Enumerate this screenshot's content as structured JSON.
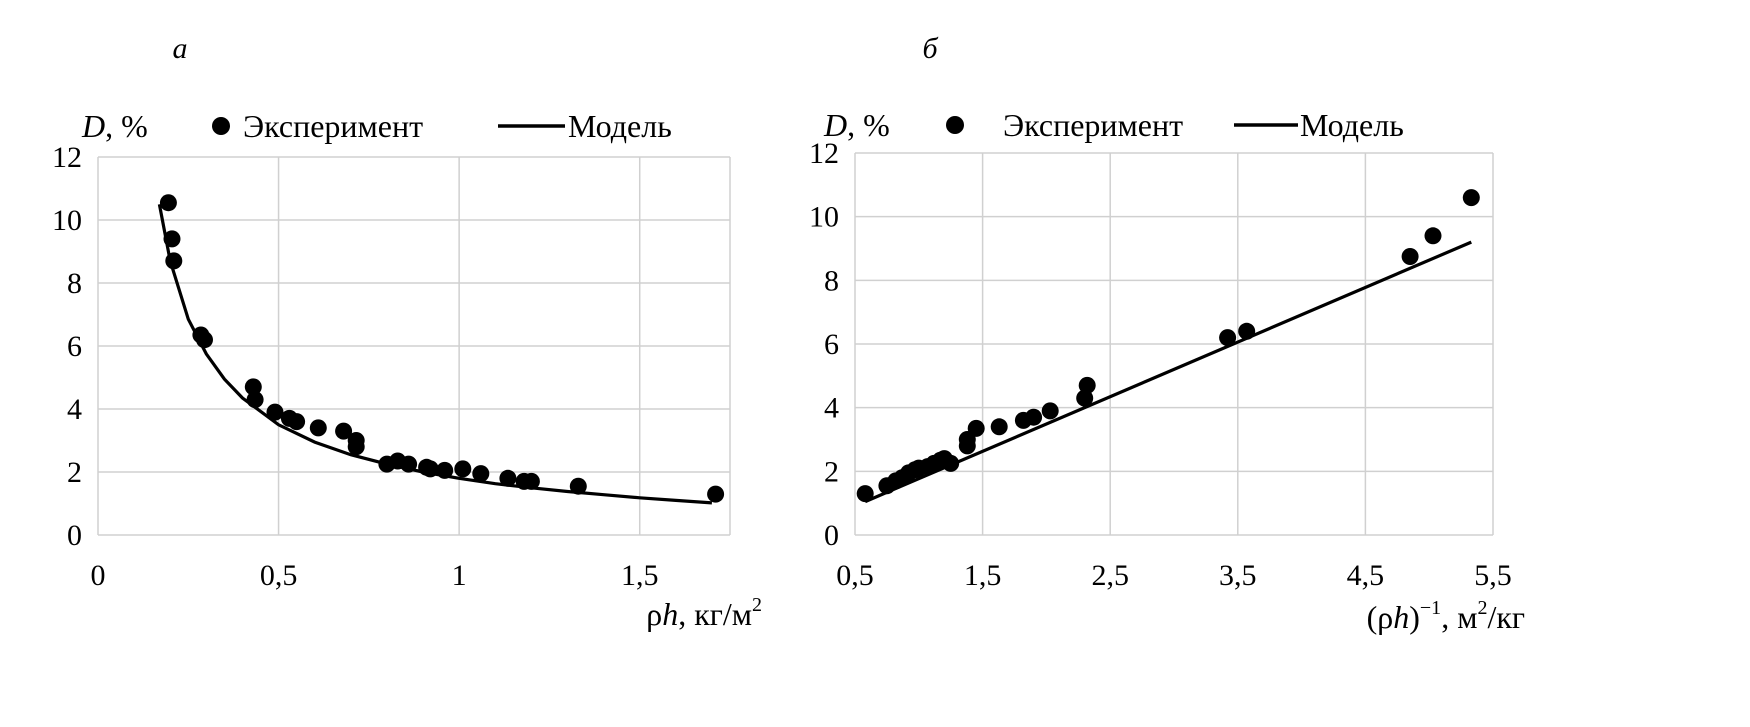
{
  "chart_data": [
    {
      "type": "scatter",
      "panel_label": "а",
      "ylabel_var": "D",
      "ylabel_unit": ", %",
      "xlabel_var1": "ρ",
      "xlabel_var2": "h",
      "xlabel_unit": ", кг/м",
      "xlabel_sup": "2",
      "xlim": [
        0,
        1.75
      ],
      "ylim": [
        0,
        12
      ],
      "xticks": [
        0,
        0.5,
        1,
        1.5
      ],
      "xtick_labels": [
        "0",
        "0,5",
        "1",
        "1,5"
      ],
      "yticks": [
        0,
        2,
        4,
        6,
        8,
        10,
        12
      ],
      "ytick_labels": [
        "0",
        "2",
        "4",
        "6",
        "8",
        "10",
        "12"
      ],
      "grid": "vertical and horizontal",
      "legend": {
        "position": "top",
        "experiment": "Эксперимент",
        "model": "Модель"
      },
      "series": [
        {
          "name": "Эксперимент",
          "x": [
            0.195,
            0.205,
            0.21,
            0.285,
            0.295,
            0.43,
            0.435,
            0.49,
            0.53,
            0.55,
            0.61,
            0.68,
            0.715,
            0.715,
            0.8,
            0.83,
            0.86,
            0.91,
            0.92,
            0.96,
            1.01,
            1.06,
            1.135,
            1.18,
            1.2,
            1.33,
            1.71
          ],
          "y": [
            10.55,
            9.4,
            8.7,
            6.35,
            6.2,
            4.7,
            4.3,
            3.9,
            3.7,
            3.6,
            3.4,
            3.3,
            3.0,
            2.8,
            2.25,
            2.35,
            2.25,
            2.15,
            2.1,
            2.05,
            2.1,
            1.95,
            1.8,
            1.7,
            1.7,
            1.55,
            1.3
          ]
        },
        {
          "name": "Модель",
          "x": [
            0.17,
            0.2,
            0.25,
            0.3,
            0.35,
            0.4,
            0.5,
            0.6,
            0.7,
            0.8,
            0.9,
            1.0,
            1.1,
            1.2,
            1.3,
            1.4,
            1.5,
            1.6,
            1.7
          ],
          "y": [
            10.5,
            8.7,
            6.85,
            5.75,
            4.95,
            4.35,
            3.5,
            2.95,
            2.55,
            2.25,
            2.0,
            1.8,
            1.63,
            1.5,
            1.38,
            1.28,
            1.18,
            1.1,
            1.02
          ]
        }
      ]
    },
    {
      "type": "scatter",
      "panel_label": "б",
      "ylabel_var": "D",
      "ylabel_unit": ", %",
      "xlabel_open": "(ρ",
      "xlabel_var": "h",
      "xlabel_close": ")",
      "xlabel_sup1": "−1",
      "xlabel_unit1": ", м",
      "xlabel_sup2": "2",
      "xlabel_unit2": "/кг",
      "xlim": [
        0.5,
        5.5
      ],
      "ylim": [
        0,
        12
      ],
      "xticks": [
        0.5,
        1.5,
        2.5,
        3.5,
        4.5,
        5.5
      ],
      "xtick_labels": [
        "0,5",
        "1,5",
        "2,5",
        "3,5",
        "4,5",
        "5,5"
      ],
      "yticks": [
        0,
        2,
        4,
        6,
        8,
        10,
        12
      ],
      "ytick_labels": [
        "0",
        "2",
        "4",
        "6",
        "8",
        "10",
        "12"
      ],
      "grid": "vertical and horizontal",
      "legend": {
        "position": "top",
        "experiment": "Эксперимент",
        "model": "Модель"
      },
      "series": [
        {
          "name": "Эксперимент",
          "x": [
            0.58,
            0.75,
            0.82,
            0.87,
            0.92,
            0.97,
            1.0,
            1.07,
            1.12,
            1.17,
            1.2,
            1.25,
            1.38,
            1.38,
            1.45,
            1.63,
            1.82,
            1.9,
            2.03,
            2.3,
            2.32,
            3.42,
            3.57,
            4.85,
            5.03,
            5.33
          ],
          "y": [
            1.3,
            1.55,
            1.7,
            1.8,
            1.95,
            2.05,
            2.1,
            2.15,
            2.25,
            2.35,
            2.4,
            2.25,
            2.8,
            3.0,
            3.35,
            3.4,
            3.6,
            3.7,
            3.9,
            4.3,
            4.7,
            6.2,
            6.4,
            8.75,
            9.4,
            10.6
          ]
        },
        {
          "name": "Модель",
          "x": [
            0.58,
            5.33
          ],
          "y": [
            1.05,
            9.2
          ]
        }
      ]
    }
  ]
}
